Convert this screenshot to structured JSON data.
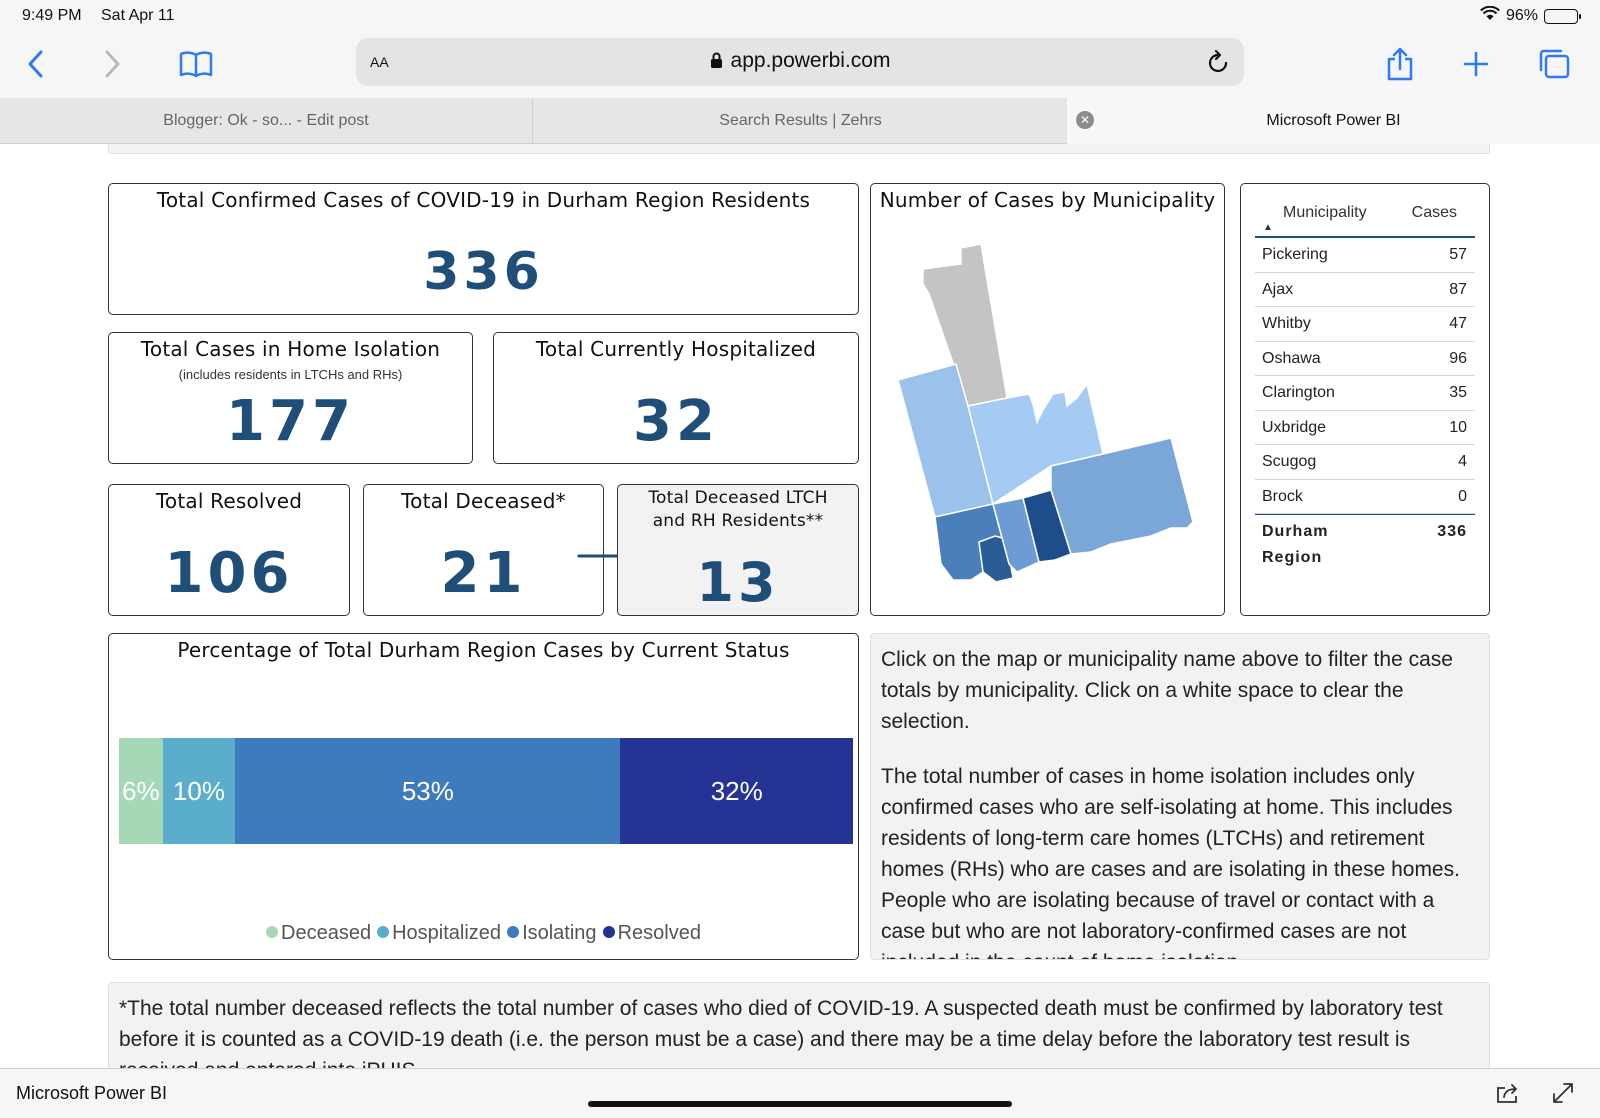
{
  "status": {
    "time": "9:49 PM",
    "date": "Sat Apr 11",
    "battery": "96%"
  },
  "browser": {
    "aa_label": "AA",
    "domain": "app.powerbi.com",
    "tabs": [
      {
        "label": "Blogger: Ok - so... - Edit post"
      },
      {
        "label": "Search Results | Zehrs"
      },
      {
        "label": "Microsoft Power BI"
      }
    ]
  },
  "dashboard": {
    "total_confirmed": {
      "title": "Total Confirmed Cases of COVID-19 in Durham Region Residents",
      "value": "336"
    },
    "home_isolation": {
      "title": "Total Cases in Home Isolation",
      "subtitle": "(includes residents in LTCHs and RHs)",
      "value": "177"
    },
    "hospitalized": {
      "title": "Total Currently Hospitalized",
      "value": "32"
    },
    "resolved": {
      "title": "Total Resolved",
      "value": "106"
    },
    "deceased": {
      "title": "Total Deceased*",
      "value": "21"
    },
    "deceased_ltch": {
      "title_line1": "Total Deceased LTCH",
      "title_line2": "and RH Residents**",
      "value": "13"
    },
    "map": {
      "title": "Number of Cases by Municipality"
    },
    "table": {
      "headers": {
        "municipality": "Municipality",
        "cases": "Cases"
      },
      "rows": [
        {
          "name": "Pickering",
          "cases": "57"
        },
        {
          "name": "Ajax",
          "cases": "87"
        },
        {
          "name": "Whitby",
          "cases": "47"
        },
        {
          "name": "Oshawa",
          "cases": "96"
        },
        {
          "name": "Clarington",
          "cases": "35"
        },
        {
          "name": "Uxbridge",
          "cases": "10"
        },
        {
          "name": "Scugog",
          "cases": "4"
        },
        {
          "name": "Brock",
          "cases": "0"
        }
      ],
      "total": {
        "name": "Durham Region",
        "cases": "336"
      }
    },
    "status_chart": {
      "title": "Percentage of Total Durham Region Cases by Current Status"
    },
    "info_text": {
      "p1": "Click on the map or municipality name above to filter the case totals by municipality. Click on a white space to clear the selection.",
      "p2": "The total number of cases in home isolation includes only confirmed cases who are self-isolating at home. This includes residents of long-term care homes (LTCHs) and retirement homes (RHs) who are cases and are isolating in these homes. People who are isolating because of travel or contact with a case but who are not laboratory-confirmed cases are not included in the count of home isolation."
    },
    "footnote": "*The total number deceased reflects the total number of cases who died of COVID-19. A suspected death must be confirmed by laboratory test before it is counted as a COVID-19 death (i.e. the person must be a case) and there may be a time delay before the laboratory test result is received and entered into iPHIS."
  },
  "bottom_bar": {
    "label": "Microsoft Power BI"
  },
  "chart_data": {
    "type": "bar",
    "orientation": "horizontal-stacked",
    "series": [
      {
        "name": "Deceased",
        "value": 6,
        "label": "6%",
        "color": "#a6d8b8"
      },
      {
        "name": "Hospitalized",
        "value": 10,
        "label": "10%",
        "color": "#5baecb"
      },
      {
        "name": "Isolating",
        "value": 53,
        "label": "53%",
        "color": "#3e7bbd"
      },
      {
        "name": "Resolved",
        "value": 32,
        "label": "32%",
        "color": "#253494"
      }
    ],
    "legend_position": "bottom"
  },
  "colors": {
    "accent": "#1f4e79",
    "ios_blue": "#2f7bf5"
  }
}
